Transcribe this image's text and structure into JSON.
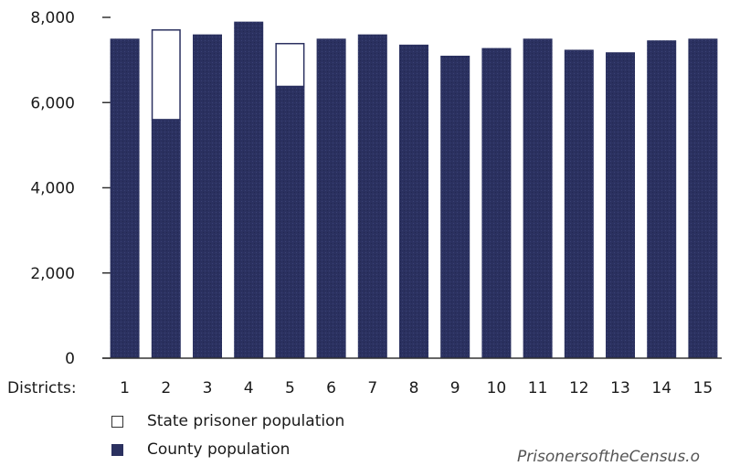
{
  "chart_data": {
    "type": "bar",
    "stacked": true,
    "xlabel": "Districts:",
    "categories": [
      "1",
      "2",
      "3",
      "4",
      "5",
      "6",
      "7",
      "8",
      "9",
      "10",
      "11",
      "12",
      "13",
      "14",
      "15"
    ],
    "series": [
      {
        "name": "County population",
        "values": [
          7500,
          5600,
          7600,
          7900,
          6380,
          7500,
          7600,
          7360,
          7100,
          7280,
          7500,
          7240,
          7180,
          7460,
          7500
        ],
        "color": "#2b3160"
      },
      {
        "name": "State prisoner population",
        "values": [
          0,
          2120,
          0,
          0,
          1020,
          0,
          0,
          0,
          0,
          0,
          0,
          0,
          0,
          0,
          0
        ],
        "color": "#ffffff"
      }
    ],
    "yticks": [
      "0",
      "2,000",
      "4,000",
      "6,000",
      "8,000"
    ],
    "ylim": [
      0,
      8000
    ],
    "grid": false,
    "legend_position": "bottom-left"
  },
  "legend": {
    "prisoner": "State prisoner population",
    "county": "County population"
  },
  "credit": "PrisonersoftheCensus.o"
}
